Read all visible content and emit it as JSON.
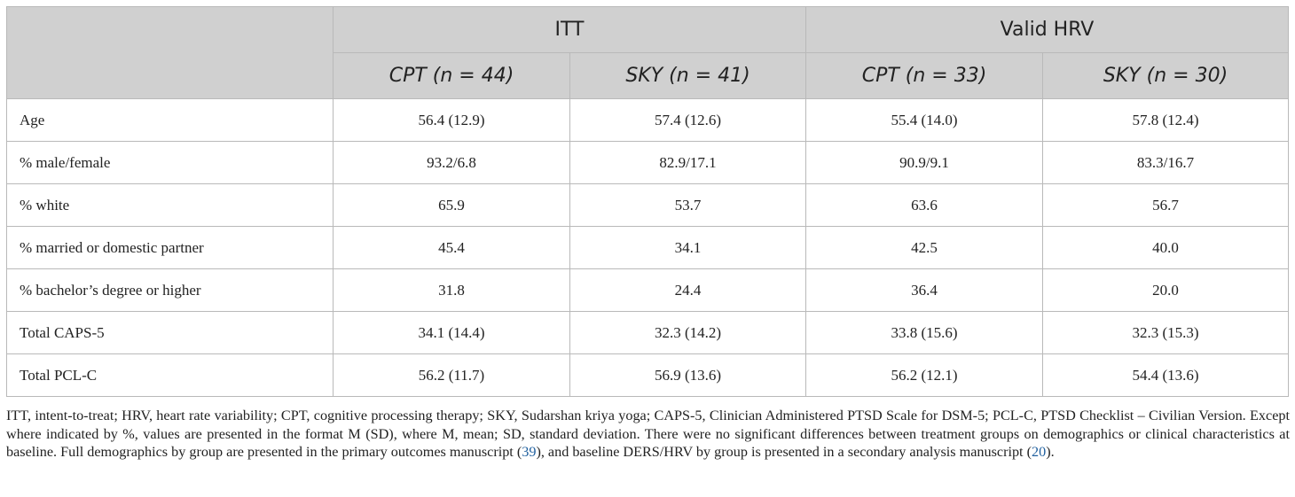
{
  "table": {
    "group_headers": [
      "ITT",
      "Valid HRV"
    ],
    "column_headers": [
      "CPT (n = 44)",
      "SKY (n = 41)",
      "CPT (n = 33)",
      "SKY (n = 30)"
    ],
    "rows": [
      {
        "label": "Age",
        "values": [
          "56.4 (12.9)",
          "57.4 (12.6)",
          "55.4 (14.0)",
          "57.8 (12.4)"
        ]
      },
      {
        "label": "% male/female",
        "values": [
          "93.2/6.8",
          "82.9/17.1",
          "90.9/9.1",
          "83.3/16.7"
        ]
      },
      {
        "label": "% white",
        "values": [
          "65.9",
          "53.7",
          "63.6",
          "56.7"
        ]
      },
      {
        "label": "% married or domestic partner",
        "values": [
          "45.4",
          "34.1",
          "42.5",
          "40.0"
        ]
      },
      {
        "label": "% bachelor’s degree or higher",
        "values": [
          "31.8",
          "24.4",
          "36.4",
          "20.0"
        ]
      },
      {
        "label": "Total CAPS-5",
        "values": [
          "34.1 (14.4)",
          "32.3 (14.2)",
          "33.8 (15.6)",
          "32.3 (15.3)"
        ]
      },
      {
        "label": "Total PCL-C",
        "values": [
          "56.2 (11.7)",
          "56.9 (13.6)",
          "56.2 (12.1)",
          "54.4 (13.6)"
        ]
      }
    ]
  },
  "footnote": {
    "part1": "ITT, intent-to-treat; HRV, heart rate variability; CPT, cognitive processing therapy; SKY, Sudarshan kriya yoga; CAPS-5, Clinician Administered PTSD Scale for DSM-5; PCL-C, PTSD Checklist – Civilian Version. Except where indicated by %, values are presented in the format M (SD), where M, mean; SD, standard deviation. There were no significant differences between treatment groups on demographics or clinical characteristics at baseline. Full demographics by group are presented in the primary outcomes manuscript (",
    "ref1": "39",
    "part2": "), and baseline DERS/HRV by group is presented in a secondary analysis manuscript (",
    "ref2": "20",
    "part3": ")."
  }
}
